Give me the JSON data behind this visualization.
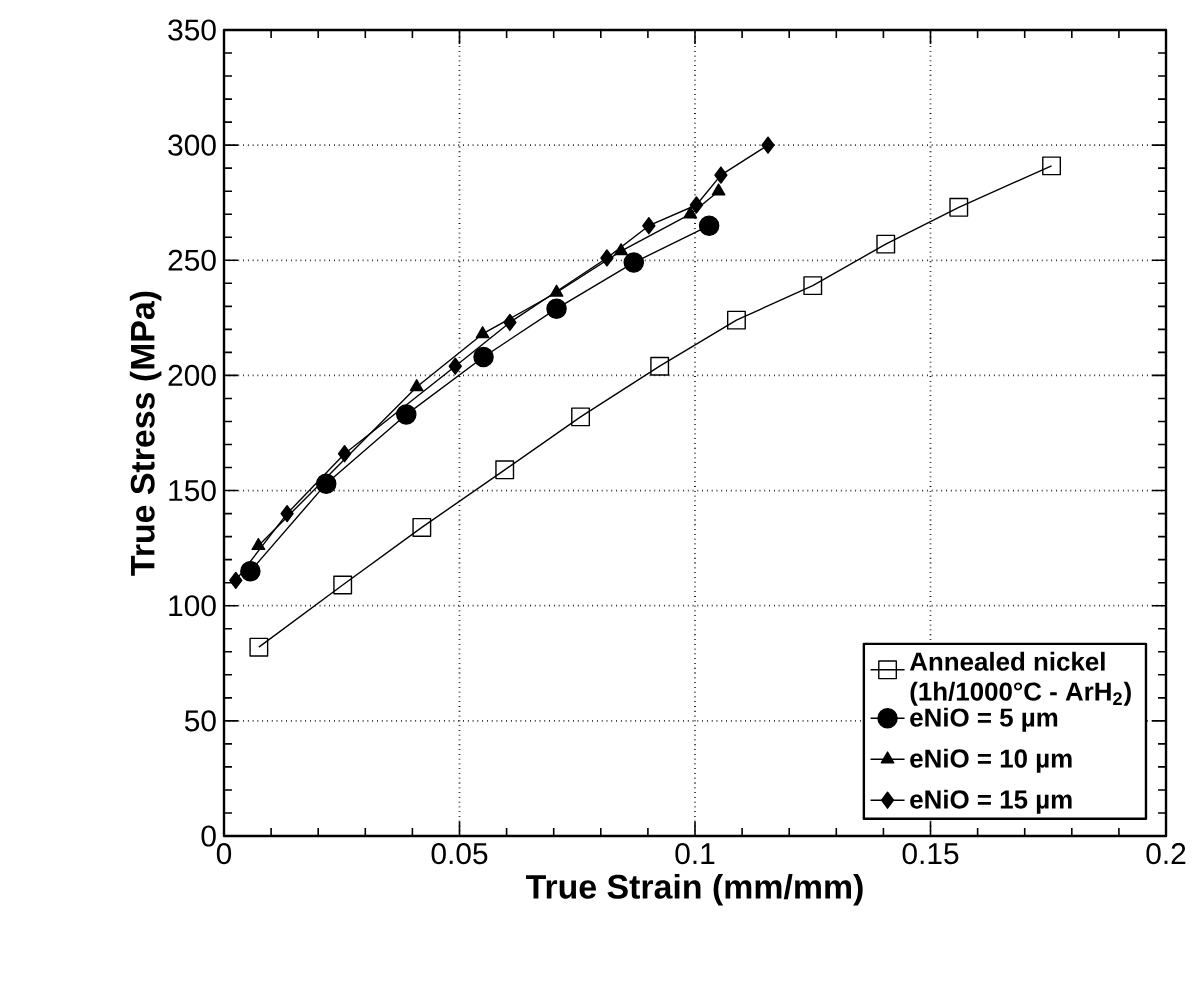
{
  "chart_data": {
    "type": "line",
    "xlabel": "True Strain (mm/mm)",
    "ylabel": "True Stress (MPa)",
    "xlim": [
      0,
      0.2
    ],
    "ylim": [
      0,
      350
    ],
    "xticks": [
      0,
      0.05,
      0.1,
      0.15,
      0.2
    ],
    "yticks": [
      0,
      50,
      100,
      150,
      200,
      250,
      300,
      350
    ],
    "grid": true,
    "legend": "bottom right",
    "series": [
      {
        "name": "Annealed nickel (1h/1000°C - ArH$_{2}$)",
        "color": "#000000",
        "marker": "square",
        "x": [
          0.0074,
          0.0252,
          0.042,
          0.0596,
          0.0757,
          0.0925,
          0.1088,
          0.125,
          0.1405,
          0.156,
          0.1757
        ],
        "values": [
          82,
          109,
          134,
          159,
          182,
          204,
          224,
          239,
          257,
          273,
          291
        ]
      },
      {
        "name": "eNiO = 5 µm",
        "color": "#000000",
        "marker": "circle",
        "x": [
          0.0056,
          0.0217,
          0.0387,
          0.0551,
          0.0706,
          0.087,
          0.103
        ],
        "values": [
          115,
          153,
          183,
          208,
          229,
          249,
          265
        ]
      },
      {
        "name": "eNiO = 10 µm",
        "color": "#000000",
        "marker": "triangle",
        "x": [
          0.0073,
          0.0249,
          0.0409,
          0.0549,
          0.0706,
          0.0843,
          0.099,
          0.105
        ],
        "values": [
          126,
          null,
          195,
          218,
          236,
          254,
          270,
          280
        ]
      },
      {
        "name": "eNiO = 15 µm",
        "color": "#000000",
        "marker": "diamond",
        "x": [
          0.0025,
          0.0134,
          0.0256,
          0.0491,
          0.0607,
          0.0813,
          0.0902,
          0.1003,
          0.1055,
          0.1155
        ],
        "values": [
          111,
          140,
          166,
          204,
          223,
          251,
          265,
          274,
          287,
          300
        ]
      }
    ]
  }
}
